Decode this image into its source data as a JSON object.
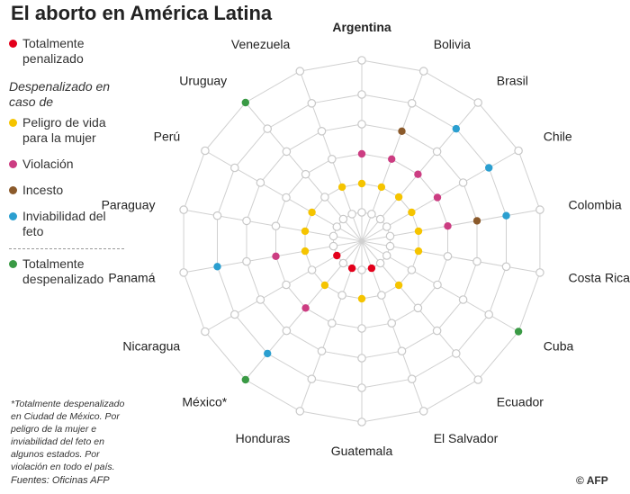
{
  "title": "El aborto en América Latina",
  "legend": {
    "total_penalizado": "Totalmente penalizado",
    "despenalizado_heading": "Despenalizado en caso de",
    "peligro": "Peligro de vida para la mujer",
    "violacion": "Violación",
    "incesto": "Incesto",
    "inviabilidad": "Inviabilidad del feto",
    "total_despenalizado": "Totalmente despenalizado"
  },
  "footnote": "*Totalmente despenalizado en Ciudad de México. Por peligro de la mujer e inviabilidad del feto en algunos estados. Por violación en todo el país.",
  "sources": "Fuentes: Oficinas AFP",
  "credit": "© AFP",
  "colors": {
    "penalizado": "#e3001b",
    "peligro": "#f5c400",
    "violacion": "#cc3d82",
    "incesto": "#8b5a2b",
    "inviabilidad": "#2b9fd0",
    "despenalizado": "#3a9a45",
    "empty": "#c8c8c8",
    "spoke": "#d0d0d0"
  },
  "chart_data": {
    "type": "radial",
    "title": "El aborto en América Latina",
    "countries": [
      "Argentina",
      "Bolivia",
      "Brasil",
      "Chile",
      "Colombia",
      "Costa Rica",
      "Cuba",
      "Ecuador",
      "El Salvador",
      "Guatemala",
      "Honduras",
      "México*",
      "Nicaragua",
      "Panamá",
      "Paraguay",
      "Perú",
      "Uruguay",
      "Venezuela"
    ],
    "rings": [
      "penalizado",
      "peligro",
      "violacion",
      "incesto",
      "inviabilidad",
      "despenalizado"
    ],
    "ring_labels": [
      "Totalmente penalizado",
      "Peligro de vida para la mujer",
      "Violación",
      "Incesto",
      "Inviabilidad del feto",
      "Totalmente despenalizado"
    ],
    "values": {
      "Argentina": [
        0,
        1,
        1,
        0,
        0,
        0
      ],
      "Bolivia": [
        0,
        1,
        1,
        1,
        0,
        0
      ],
      "Brasil": [
        0,
        1,
        1,
        0,
        1,
        0
      ],
      "Chile": [
        0,
        1,
        1,
        0,
        1,
        0
      ],
      "Colombia": [
        0,
        1,
        1,
        1,
        1,
        0
      ],
      "Costa Rica": [
        0,
        1,
        0,
        0,
        0,
        0
      ],
      "Cuba": [
        0,
        0,
        0,
        0,
        0,
        1
      ],
      "Ecuador": [
        0,
        1,
        0,
        0,
        0,
        0
      ],
      "El Salvador": [
        1,
        0,
        0,
        0,
        0,
        0
      ],
      "Guatemala": [
        0,
        1,
        0,
        0,
        0,
        0
      ],
      "Honduras": [
        1,
        0,
        0,
        0,
        0,
        0
      ],
      "México*": [
        0,
        1,
        1,
        0,
        1,
        1
      ],
      "Nicaragua": [
        1,
        0,
        0,
        0,
        0,
        0
      ],
      "Panamá": [
        0,
        1,
        1,
        0,
        1,
        0
      ],
      "Paraguay": [
        0,
        1,
        0,
        0,
        0,
        0
      ],
      "Perú": [
        0,
        1,
        0,
        0,
        0,
        0
      ],
      "Uruguay": [
        0,
        0,
        0,
        0,
        0,
        1
      ],
      "Venezuela": [
        0,
        1,
        0,
        0,
        0,
        0
      ]
    }
  }
}
